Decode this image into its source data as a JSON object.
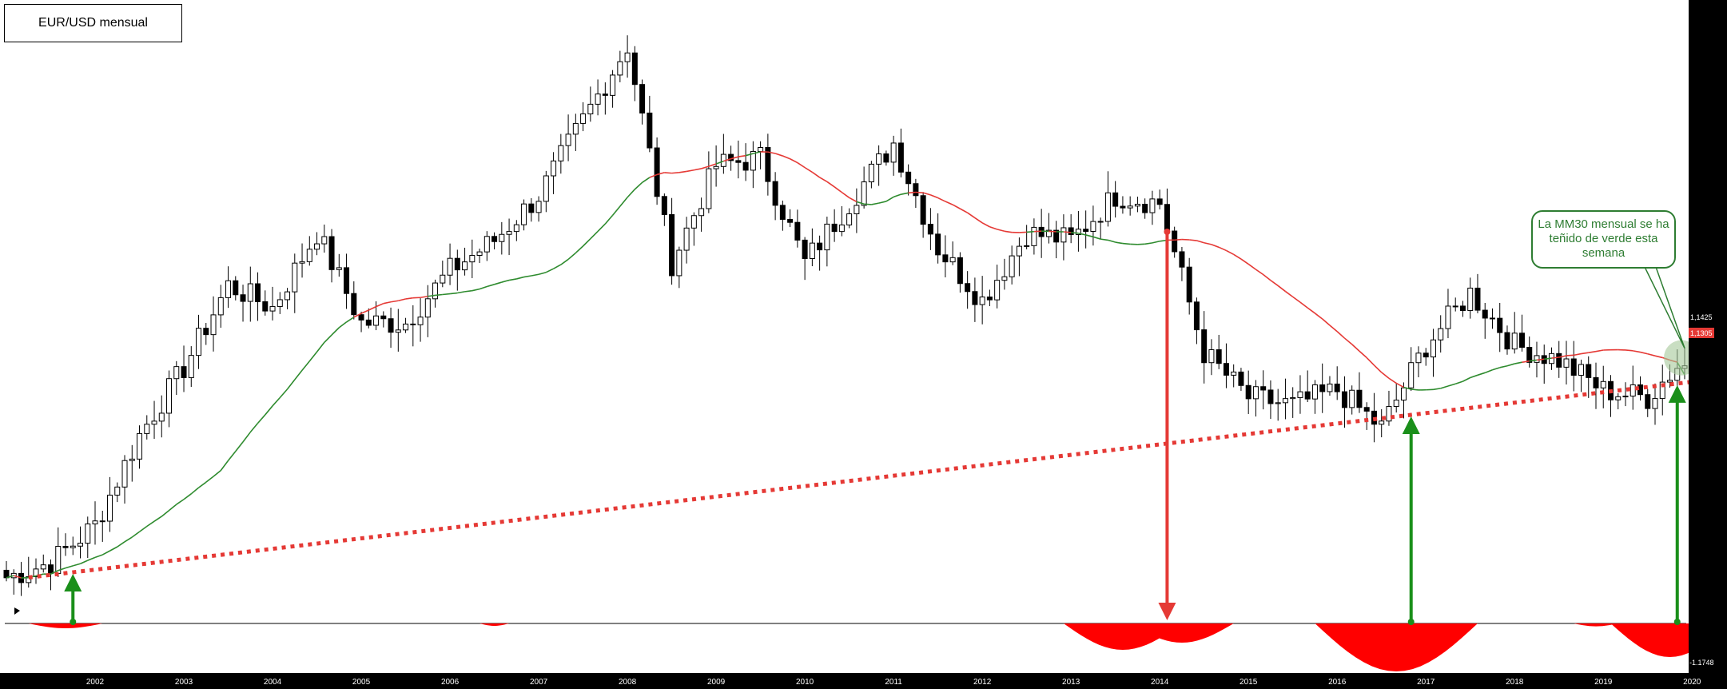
{
  "title": "EUR/USD mensual",
  "annotation": "La MM30 mensual se ha teñido de verde esta semana",
  "price_labels": {
    "current": "1,1425",
    "ma": "1,1305",
    "oscillator_min": "-1.1748"
  },
  "colors": {
    "bull_candle": "#ffffff",
    "bear_candle": "#000000",
    "ma_below": "#e53935",
    "ma_above": "#2e8b2e",
    "trendline": "#e53935",
    "arrow_green": "#1a8f1a",
    "arrow_red": "#e53935",
    "oscillator_fill": "#ff0000",
    "axis_bg": "#000000"
  },
  "chart_data": {
    "type": "candlestick",
    "title": "EUR/USD mensual",
    "timeframe": "monthly",
    "x_tick_labels": [
      "2002",
      "2003",
      "2004",
      "2005",
      "2006",
      "2007",
      "2008",
      "2009",
      "2010",
      "2011",
      "2012",
      "2013",
      "2014",
      "2015",
      "2016",
      "2017",
      "2018",
      "2019",
      "2020"
    ],
    "ylim": [
      0.82,
      1.62
    ],
    "price_path_yearly": {
      "x": [
        "2001-07",
        "2002-01",
        "2002-07",
        "2003-01",
        "2003-07",
        "2004-01",
        "2004-07",
        "2005-01",
        "2005-07",
        "2006-01",
        "2006-07",
        "2007-01",
        "2007-07",
        "2008-01",
        "2008-07",
        "2009-01",
        "2009-07",
        "2010-01",
        "2010-07",
        "2011-01",
        "2011-07",
        "2012-01",
        "2012-07",
        "2013-01",
        "2013-07",
        "2014-01",
        "2014-07",
        "2015-01",
        "2015-07",
        "2016-01",
        "2016-07",
        "2017-01",
        "2017-07",
        "2018-01",
        "2018-07",
        "2019-01",
        "2019-07",
        "2020-01",
        "2020-05"
      ],
      "close": [
        0.86,
        0.88,
        0.93,
        1.05,
        1.14,
        1.25,
        1.22,
        1.32,
        1.2,
        1.2,
        1.27,
        1.31,
        1.37,
        1.47,
        1.57,
        1.28,
        1.41,
        1.42,
        1.28,
        1.36,
        1.44,
        1.3,
        1.23,
        1.32,
        1.31,
        1.37,
        1.36,
        1.16,
        1.1,
        1.09,
        1.11,
        1.06,
        1.17,
        1.24,
        1.17,
        1.15,
        1.11,
        1.1,
        1.1425
      ]
    },
    "moving_average": {
      "name": "MM30",
      "current": 1.1305,
      "note": "red when price is below, green when price is above"
    },
    "trendline": {
      "style": "dotted",
      "color": "red",
      "from": {
        "x": "2001-10",
        "y": 0.86
      },
      "to": {
        "x": "2020-06",
        "y": 1.12
      }
    },
    "arrows": [
      {
        "x": "2002-04",
        "direction": "up",
        "color": "green"
      },
      {
        "x": "2014-08",
        "direction": "down",
        "color": "red"
      },
      {
        "x": "2017-05",
        "direction": "up",
        "color": "green"
      },
      {
        "x": "2020-05",
        "direction": "up",
        "color": "green"
      }
    ],
    "oscillator": {
      "min_label": -1.1748,
      "negative_regions": [
        "2002-03",
        "2007-01",
        "2014-02",
        "2014-10",
        "2017-03",
        "2019-06",
        "2020-04"
      ]
    }
  }
}
